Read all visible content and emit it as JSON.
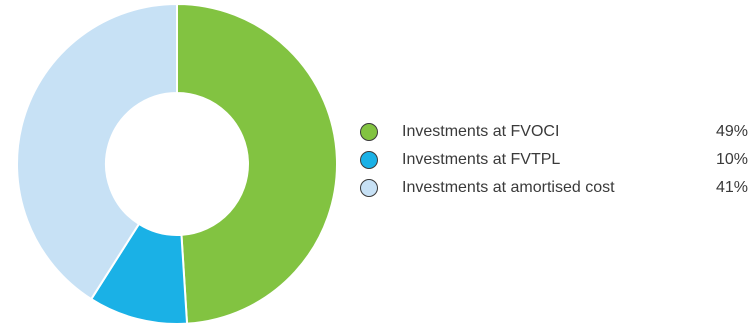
{
  "chart_data": {
    "type": "pie",
    "variant": "donut",
    "legend_position": "right",
    "series": [
      {
        "name": "Investments at FVOCI",
        "value": 49,
        "label": "49%",
        "color": "#82c341"
      },
      {
        "name": "Investments at FVTPL",
        "value": 10,
        "label": "10%",
        "color": "#1ab1e6"
      },
      {
        "name": "Investments at amortised cost",
        "value": 41,
        "label": "41%",
        "color": "#c7e1f5"
      }
    ]
  }
}
